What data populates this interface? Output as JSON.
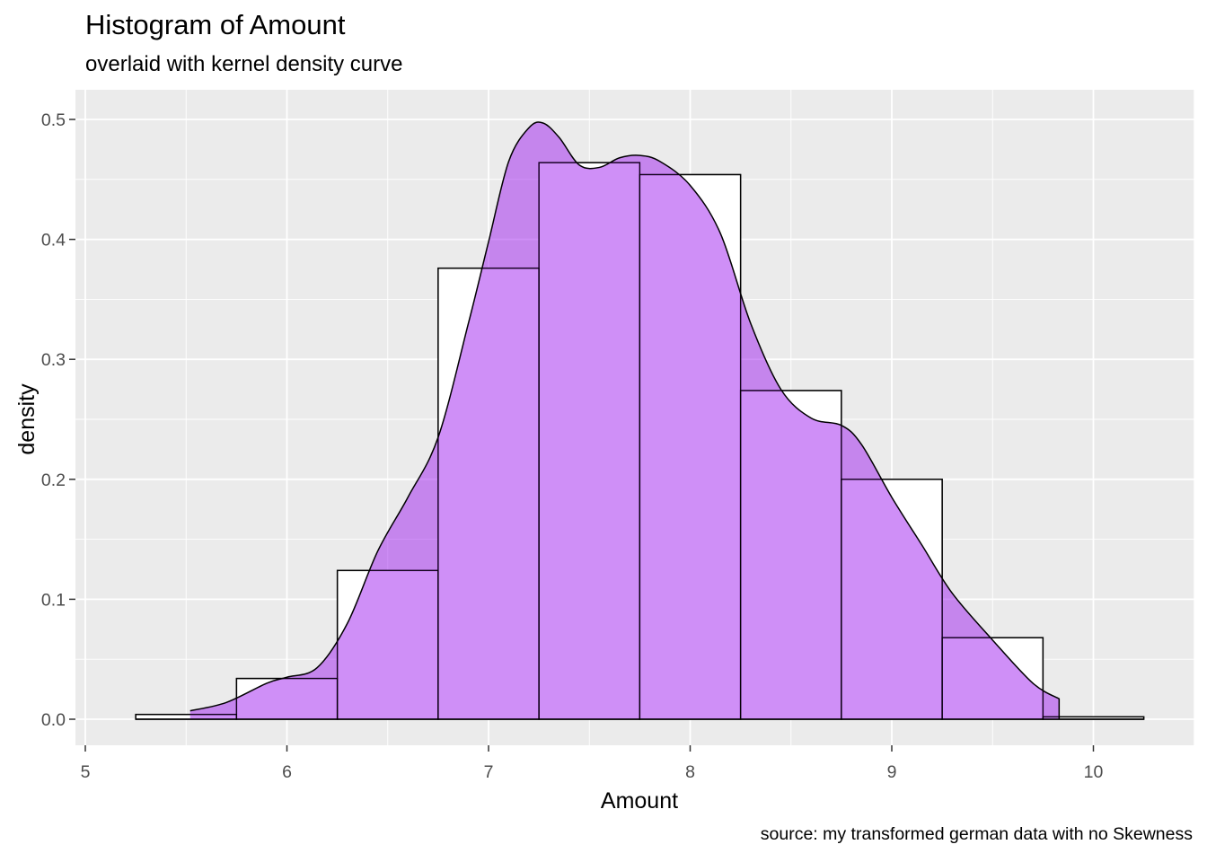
{
  "chart_data": {
    "type": "histogram",
    "title": "Histogram of Amount",
    "subtitle": "overlaid with kernel density curve",
    "caption": "source: my transformed german data with no Skewness",
    "xlabel": "Amount",
    "ylabel": "density",
    "xlim": [
      5,
      10.45
    ],
    "ylim": [
      0,
      0.5
    ],
    "x_ticks": [
      5,
      6,
      7,
      8,
      9,
      10
    ],
    "y_ticks": [
      0.0,
      0.1,
      0.2,
      0.3,
      0.4,
      0.5
    ],
    "x_tick_labels": [
      "5",
      "6",
      "7",
      "8",
      "9",
      "10"
    ],
    "y_tick_labels": [
      "0.0",
      "0.1",
      "0.2",
      "0.3",
      "0.4",
      "0.5"
    ],
    "grid": true,
    "bins": [
      {
        "x0": 5.25,
        "x1": 5.75,
        "density": 0.004
      },
      {
        "x0": 5.75,
        "x1": 6.25,
        "density": 0.034
      },
      {
        "x0": 6.25,
        "x1": 6.75,
        "density": 0.124
      },
      {
        "x0": 6.75,
        "x1": 7.25,
        "density": 0.376
      },
      {
        "x0": 7.25,
        "x1": 7.75,
        "density": 0.464
      },
      {
        "x0": 7.75,
        "x1": 8.25,
        "density": 0.454
      },
      {
        "x0": 8.25,
        "x1": 8.75,
        "density": 0.274
      },
      {
        "x0": 8.75,
        "x1": 9.25,
        "density": 0.2
      },
      {
        "x0": 9.25,
        "x1": 9.75,
        "density": 0.068
      },
      {
        "x0": 9.75,
        "x1": 10.25,
        "density": 0.002
      }
    ],
    "density_curve": {
      "x": [
        5.52,
        5.7,
        5.9,
        6.0,
        6.15,
        6.3,
        6.45,
        6.6,
        6.75,
        6.9,
        7.0,
        7.1,
        7.2,
        7.27,
        7.35,
        7.45,
        7.55,
        7.65,
        7.75,
        7.85,
        8.0,
        8.15,
        8.3,
        8.45,
        8.6,
        8.75,
        8.85,
        9.0,
        9.15,
        9.3,
        9.5,
        9.7,
        9.83
      ],
      "y": [
        0.007,
        0.014,
        0.03,
        0.035,
        0.043,
        0.08,
        0.14,
        0.185,
        0.235,
        0.33,
        0.398,
        0.465,
        0.493,
        0.497,
        0.485,
        0.462,
        0.46,
        0.468,
        0.47,
        0.465,
        0.445,
        0.405,
        0.33,
        0.275,
        0.251,
        0.245,
        0.229,
        0.185,
        0.145,
        0.105,
        0.066,
        0.03,
        0.017
      ]
    },
    "colors": {
      "panel_background": "#ebebeb",
      "grid": "#ffffff",
      "bar_fill": "#ffffff",
      "bar_outline": "#000000",
      "density_fill": "#a020f0",
      "density_alpha": 0.5,
      "density_line": "#000000"
    }
  }
}
